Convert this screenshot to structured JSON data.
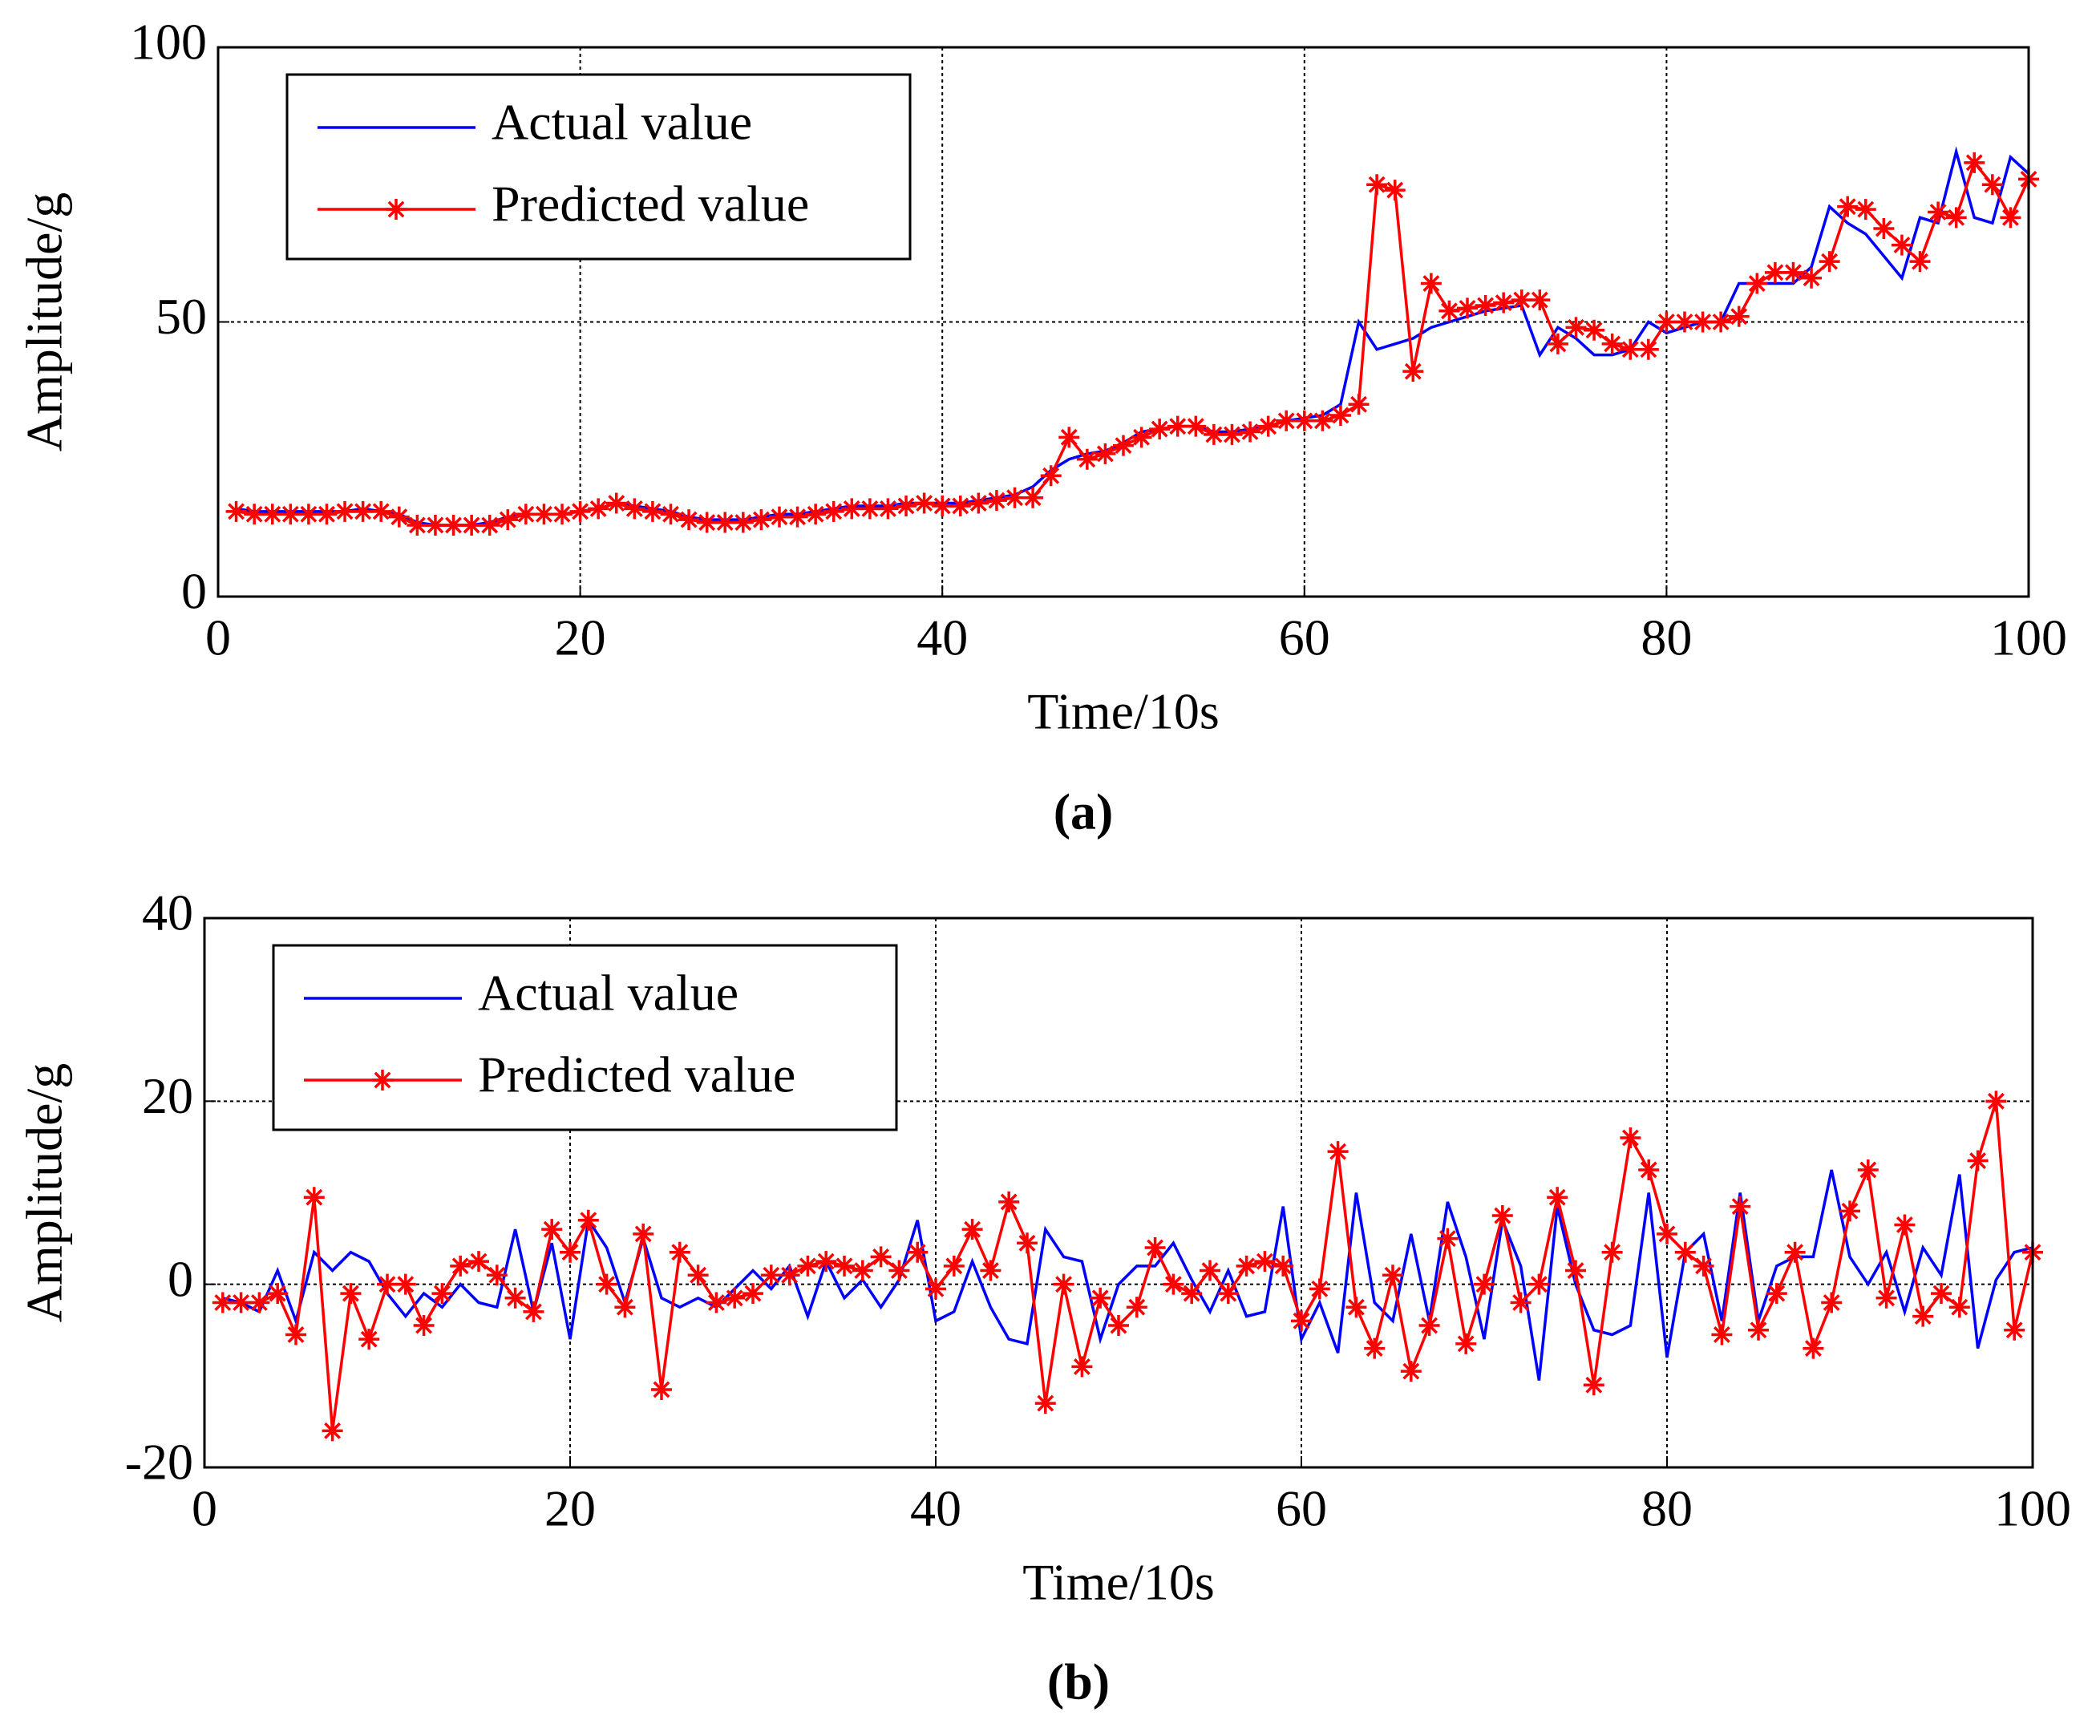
{
  "chart_data": [
    {
      "type": "line",
      "xlabel": "Time/10s",
      "ylabel": "Amplitude/g",
      "label": "(a)",
      "xlim": [
        0,
        100
      ],
      "xticks": [
        0,
        20,
        40,
        60,
        80,
        100
      ],
      "ylim": [
        0,
        100
      ],
      "yticks": [
        0,
        50,
        100
      ],
      "grid": true,
      "legend": "upper left",
      "x": [
        1,
        2,
        3,
        4,
        5,
        6,
        7,
        8,
        9,
        10,
        11,
        12,
        13,
        14,
        15,
        16,
        17,
        18,
        19,
        20,
        21,
        22,
        23,
        24,
        25,
        26,
        27,
        28,
        29,
        30,
        31,
        32,
        33,
        34,
        35,
        36,
        37,
        38,
        39,
        40,
        41,
        42,
        43,
        44,
        45,
        46,
        47,
        48,
        49,
        50,
        51,
        52,
        53,
        54,
        55,
        56,
        57,
        58,
        59,
        60,
        61,
        62,
        63,
        64,
        65,
        66,
        67,
        68,
        69,
        70,
        71,
        72,
        73,
        74,
        75,
        76,
        77,
        78,
        79,
        80,
        81,
        82,
        83,
        84,
        85,
        86,
        87,
        88,
        89,
        90,
        91,
        92,
        93,
        94,
        95,
        96,
        97,
        98,
        99,
        100
      ],
      "series": [
        {
          "name": "Actual value",
          "color": "#0000ff",
          "marker": false,
          "values": [
            16,
            15.5,
            15.5,
            15.5,
            15.5,
            15.5,
            15.5,
            16,
            15.5,
            15,
            13.5,
            13,
            13,
            13,
            13.5,
            14.5,
            15,
            15,
            15,
            15.5,
            16,
            17,
            16.5,
            16,
            15.5,
            14.5,
            14,
            14,
            14,
            14.5,
            15,
            15,
            15.5,
            16,
            16.5,
            16.5,
            16.5,
            17,
            17,
            17,
            17,
            17.5,
            18,
            18.5,
            20,
            23,
            25,
            26,
            26.5,
            28,
            30,
            30.5,
            31,
            31,
            30,
            30,
            30.5,
            31,
            32,
            32.5,
            33,
            35,
            50,
            45,
            46,
            47,
            49,
            50,
            51,
            52,
            52.5,
            53,
            44,
            49,
            47,
            44,
            44,
            45,
            50,
            48,
            49,
            50,
            50,
            57,
            57,
            57,
            57,
            60,
            71,
            68,
            66,
            62,
            58,
            69,
            68,
            81,
            69,
            68,
            80,
            77
          ]
        },
        {
          "name": "Predicted value",
          "color": "#ff0000",
          "marker": true,
          "values": [
            15.5,
            15,
            15,
            15,
            15,
            15,
            15.5,
            15.5,
            15.5,
            14.5,
            13,
            13,
            13,
            13,
            13,
            14,
            15,
            15,
            15,
            15.5,
            16,
            17,
            16,
            15.5,
            15,
            14,
            13.5,
            13.5,
            13.5,
            14,
            14.5,
            14.5,
            15,
            15.5,
            16,
            16,
            16,
            16.5,
            17,
            16.5,
            16.5,
            17,
            17.5,
            18,
            18,
            22,
            29,
            25,
            26,
            27.5,
            29,
            30.5,
            31,
            31,
            29.5,
            29.5,
            30,
            31,
            32,
            32,
            32,
            33,
            35,
            75,
            74,
            41,
            57,
            52,
            52.5,
            53,
            53.5,
            54,
            54,
            46,
            49,
            48.5,
            46,
            45,
            45,
            50,
            50,
            50,
            50,
            51,
            57,
            59,
            59,
            58,
            61,
            71,
            70.5,
            67,
            64,
            61,
            70,
            69,
            79,
            75,
            69,
            76
          ]
        }
      ]
    },
    {
      "type": "line",
      "xlabel": "Time/10s",
      "ylabel": "Amplitude/g",
      "label": "(b)",
      "xlim": [
        0,
        100
      ],
      "xticks": [
        0,
        20,
        40,
        60,
        80,
        100
      ],
      "ylim": [
        -20,
        40
      ],
      "yticks": [
        -20,
        0,
        20,
        40
      ],
      "grid": true,
      "legend": "upper left",
      "x": [
        1,
        2,
        3,
        4,
        5,
        6,
        7,
        8,
        9,
        10,
        11,
        12,
        13,
        14,
        15,
        16,
        17,
        18,
        19,
        20,
        21,
        22,
        23,
        24,
        25,
        26,
        27,
        28,
        29,
        30,
        31,
        32,
        33,
        34,
        35,
        36,
        37,
        38,
        39,
        40,
        41,
        42,
        43,
        44,
        45,
        46,
        47,
        48,
        49,
        50,
        51,
        52,
        53,
        54,
        55,
        56,
        57,
        58,
        59,
        60,
        61,
        62,
        63,
        64,
        65,
        66,
        67,
        68,
        69,
        70,
        71,
        72,
        73,
        74,
        75,
        76,
        77,
        78,
        79,
        80,
        81,
        82,
        83,
        84,
        85,
        86,
        87,
        88,
        89,
        90,
        91,
        92,
        93,
        94,
        95,
        96,
        97,
        98,
        99,
        100
      ],
      "series": [
        {
          "name": "Actual value",
          "color": "#0000ff",
          "marker": false,
          "values": [
            -1.5,
            -2,
            -3,
            1.5,
            -4,
            3.5,
            1.5,
            3.5,
            2.5,
            -1,
            -3.5,
            -1,
            -2.5,
            0,
            -2,
            -2.5,
            6,
            -3,
            4.5,
            -6,
            7,
            4,
            -2,
            5,
            -1.5,
            -2.5,
            -1.5,
            -2.5,
            -0.5,
            1.5,
            -0.5,
            2,
            -3.5,
            2.5,
            -1.5,
            0.5,
            -2.5,
            0.5,
            7,
            -4,
            -3,
            2.5,
            -2.5,
            -6,
            -6.5,
            6,
            3,
            2.5,
            -6,
            0,
            2,
            2,
            4.5,
            0.5,
            -3,
            1.5,
            -3.5,
            -3,
            8.5,
            -6,
            -2,
            -7.5,
            10,
            -2,
            -4,
            5.5,
            -4,
            9,
            3,
            -6,
            7,
            2,
            -10.5,
            8.5,
            0,
            -5,
            -5.5,
            -4.5,
            10,
            -8,
            3.5,
            5.5,
            -4,
            10,
            -4,
            2,
            3,
            3,
            12.5,
            3,
            0,
            3.5,
            -3,
            4,
            1,
            12,
            -7,
            0.5,
            3.5,
            4
          ]
        },
        {
          "name": "Predicted value",
          "color": "#ff0000",
          "marker": true,
          "values": [
            -2,
            -2,
            -2,
            -1,
            -5.5,
            9.5,
            -16,
            -1,
            -6,
            0,
            0,
            -4.5,
            -1,
            2,
            2.5,
            1,
            -1.5,
            -3,
            6,
            3.5,
            7,
            0,
            -2.5,
            5.5,
            -11.5,
            3.5,
            1,
            -2,
            -1.5,
            -1,
            1,
            1,
            2,
            2.5,
            2,
            1.5,
            3,
            1.5,
            3.5,
            -0.5,
            2,
            6,
            1.5,
            9,
            4.5,
            -13,
            0,
            -9,
            -1.5,
            -4.5,
            -2.5,
            4,
            0,
            -1,
            1.5,
            -1,
            2,
            2.5,
            2,
            -4,
            -0.5,
            14.5,
            -2.5,
            -7,
            1,
            -9.5,
            -4.5,
            5,
            -6.5,
            0,
            7.5,
            -2,
            0,
            9.5,
            1.5,
            -11,
            3.5,
            16,
            12.5,
            5.5,
            3.5,
            2,
            -5.5,
            8.5,
            -5,
            -1,
            3.5,
            -7,
            -2,
            8,
            12.5,
            -1.5,
            6.5,
            -3.5,
            -1,
            -2.5,
            13.5,
            20,
            -5,
            3.5
          ]
        }
      ]
    }
  ]
}
